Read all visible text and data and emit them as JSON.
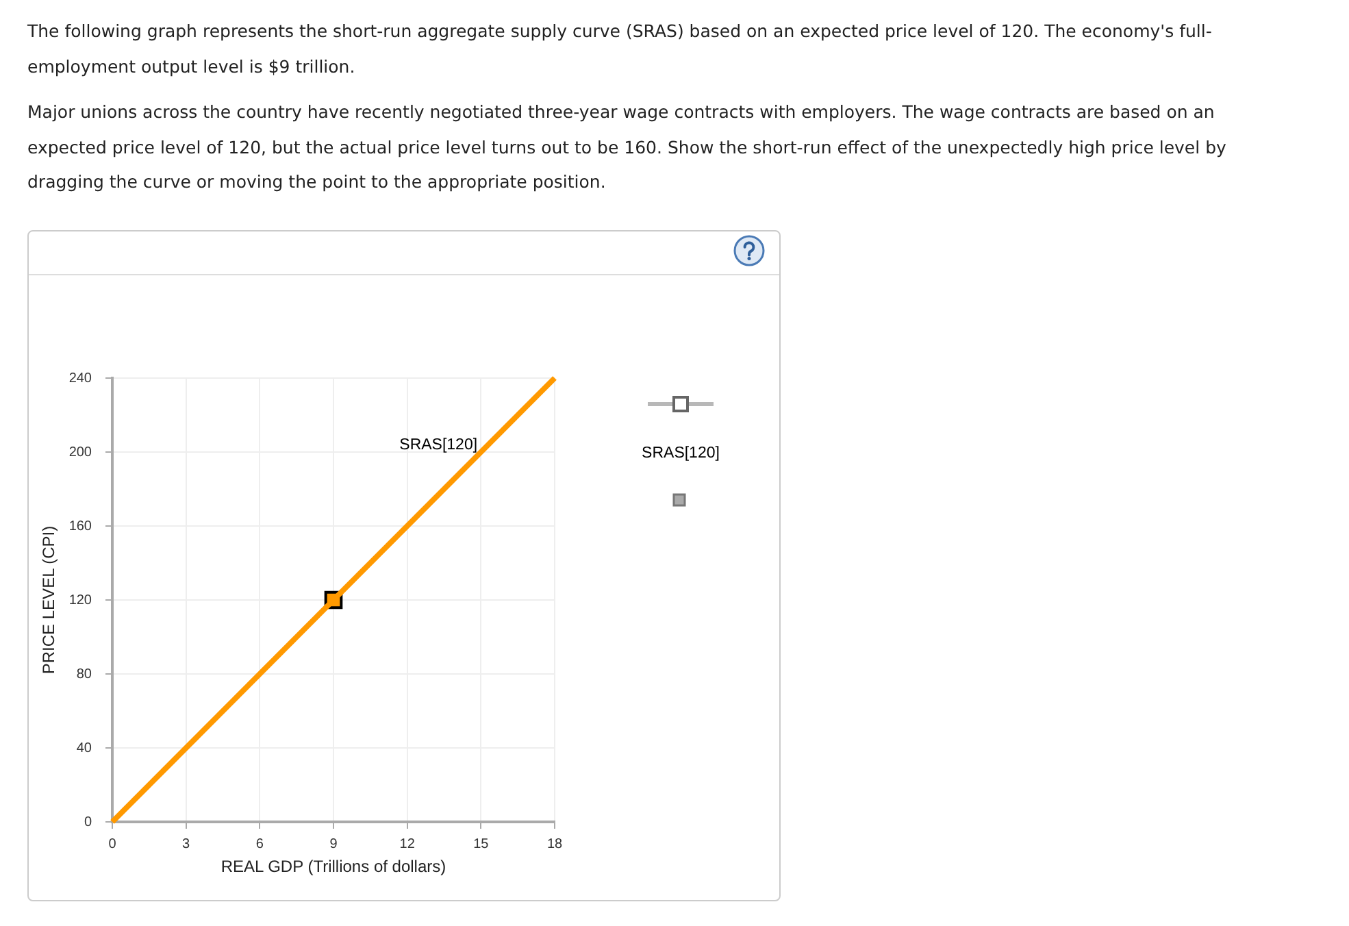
{
  "chart_data": {
    "type": "line",
    "title": "The following graph represents the short-run aggregate supply curve (SRAS) based on an expected price level of 120. The economy's full-employment output level is $9 trillion.",
    "subtitle": "Major unions across the country have recently negotiated three-year wage contracts with employers. The wage contracts are based on an expected price level of 120, but the actual price level turns out to be 160. Show the short-run effect of the unexpectedly high price level by dragging the curve or moving the point to the appropriate position.",
    "xlabel": "REAL GDP (Trillions of dollars)",
    "ylabel": "PRICE LEVEL (CPI)",
    "annotations": [
      "SRAS[120]"
    ],
    "xlim": [
      0,
      18
    ],
    "xticks": [
      0,
      3,
      6,
      9,
      12,
      15,
      18
    ],
    "ylim": [
      0,
      240
    ],
    "yticks": [
      0,
      40,
      80,
      120,
      160,
      200,
      240
    ],
    "grid": true,
    "series": [
      {
        "name": "SRAS[120]",
        "color": "#ff9900",
        "x": [
          0,
          18
        ],
        "values": [
          0,
          240
        ],
        "marker": "none"
      },
      {
        "type": "scatter",
        "color": "#ff9900",
        "x": [
          9
        ],
        "values": [
          120
        ],
        "marker": "square"
      }
    ]
  }
}
